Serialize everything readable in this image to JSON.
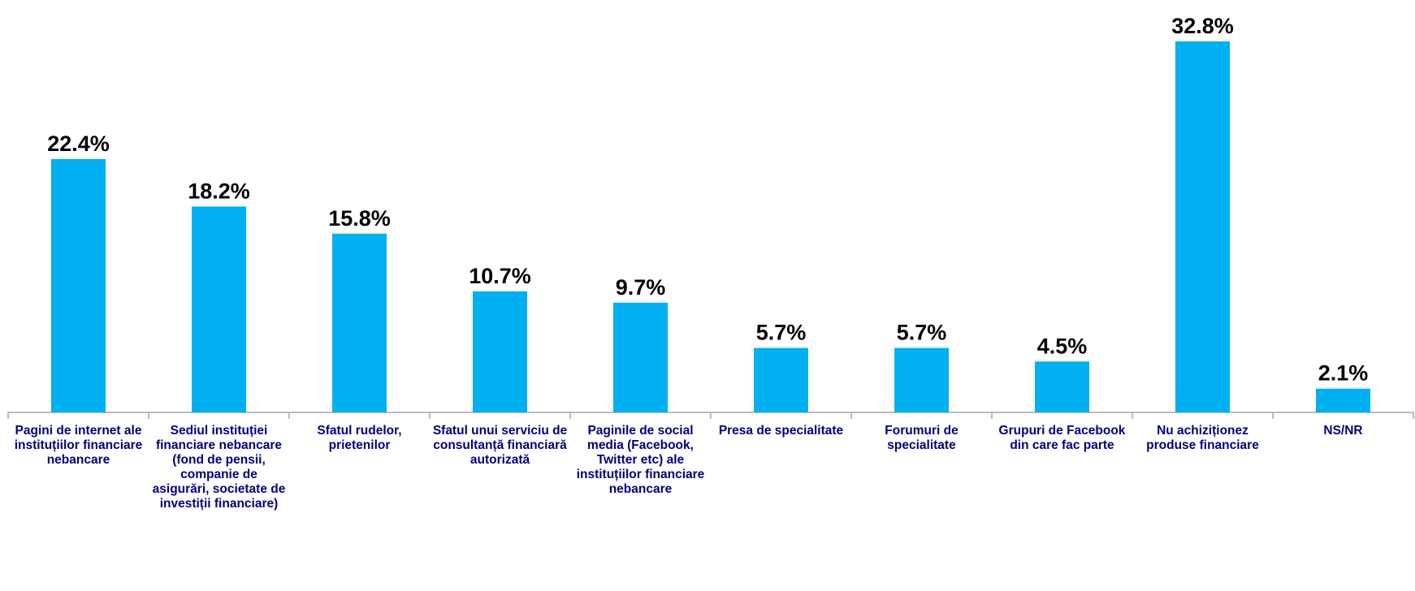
{
  "chart_data": {
    "type": "bar",
    "categories": [
      "Pagini de internet ale instituțiilor financiare nebancare",
      "Sediul instituției financiare nebancare (fond de pensii, companie de asigurări, societate de investiții financiare)",
      "Sfatul rudelor, prietenilor",
      "Sfatul unui serviciu de consultanță financiară autorizată",
      "Paginile de social media (Facebook, Twitter etc) ale instituțiilor financiare nebancare",
      "Presa de specialitate",
      "Forumuri de specialitate",
      "Grupuri de Facebook din care fac parte",
      "Nu achiziționez produse financiare",
      "NS/NR"
    ],
    "values": [
      22.4,
      18.2,
      15.8,
      10.7,
      9.7,
      5.7,
      5.7,
      4.5,
      32.8,
      2.1
    ],
    "value_labels": [
      "22.4%",
      "18.2%",
      "15.8%",
      "10.7%",
      "9.7%",
      "5.7%",
      "5.7%",
      "4.5%",
      "32.8%",
      "2.1%"
    ],
    "ylim": [
      0,
      32.8
    ],
    "grid": false,
    "legend": "none",
    "colors": {
      "bar": "#00b0f0",
      "axis": "#a6a6a6",
      "value_text": "#000000",
      "category_text": "#000080"
    }
  }
}
